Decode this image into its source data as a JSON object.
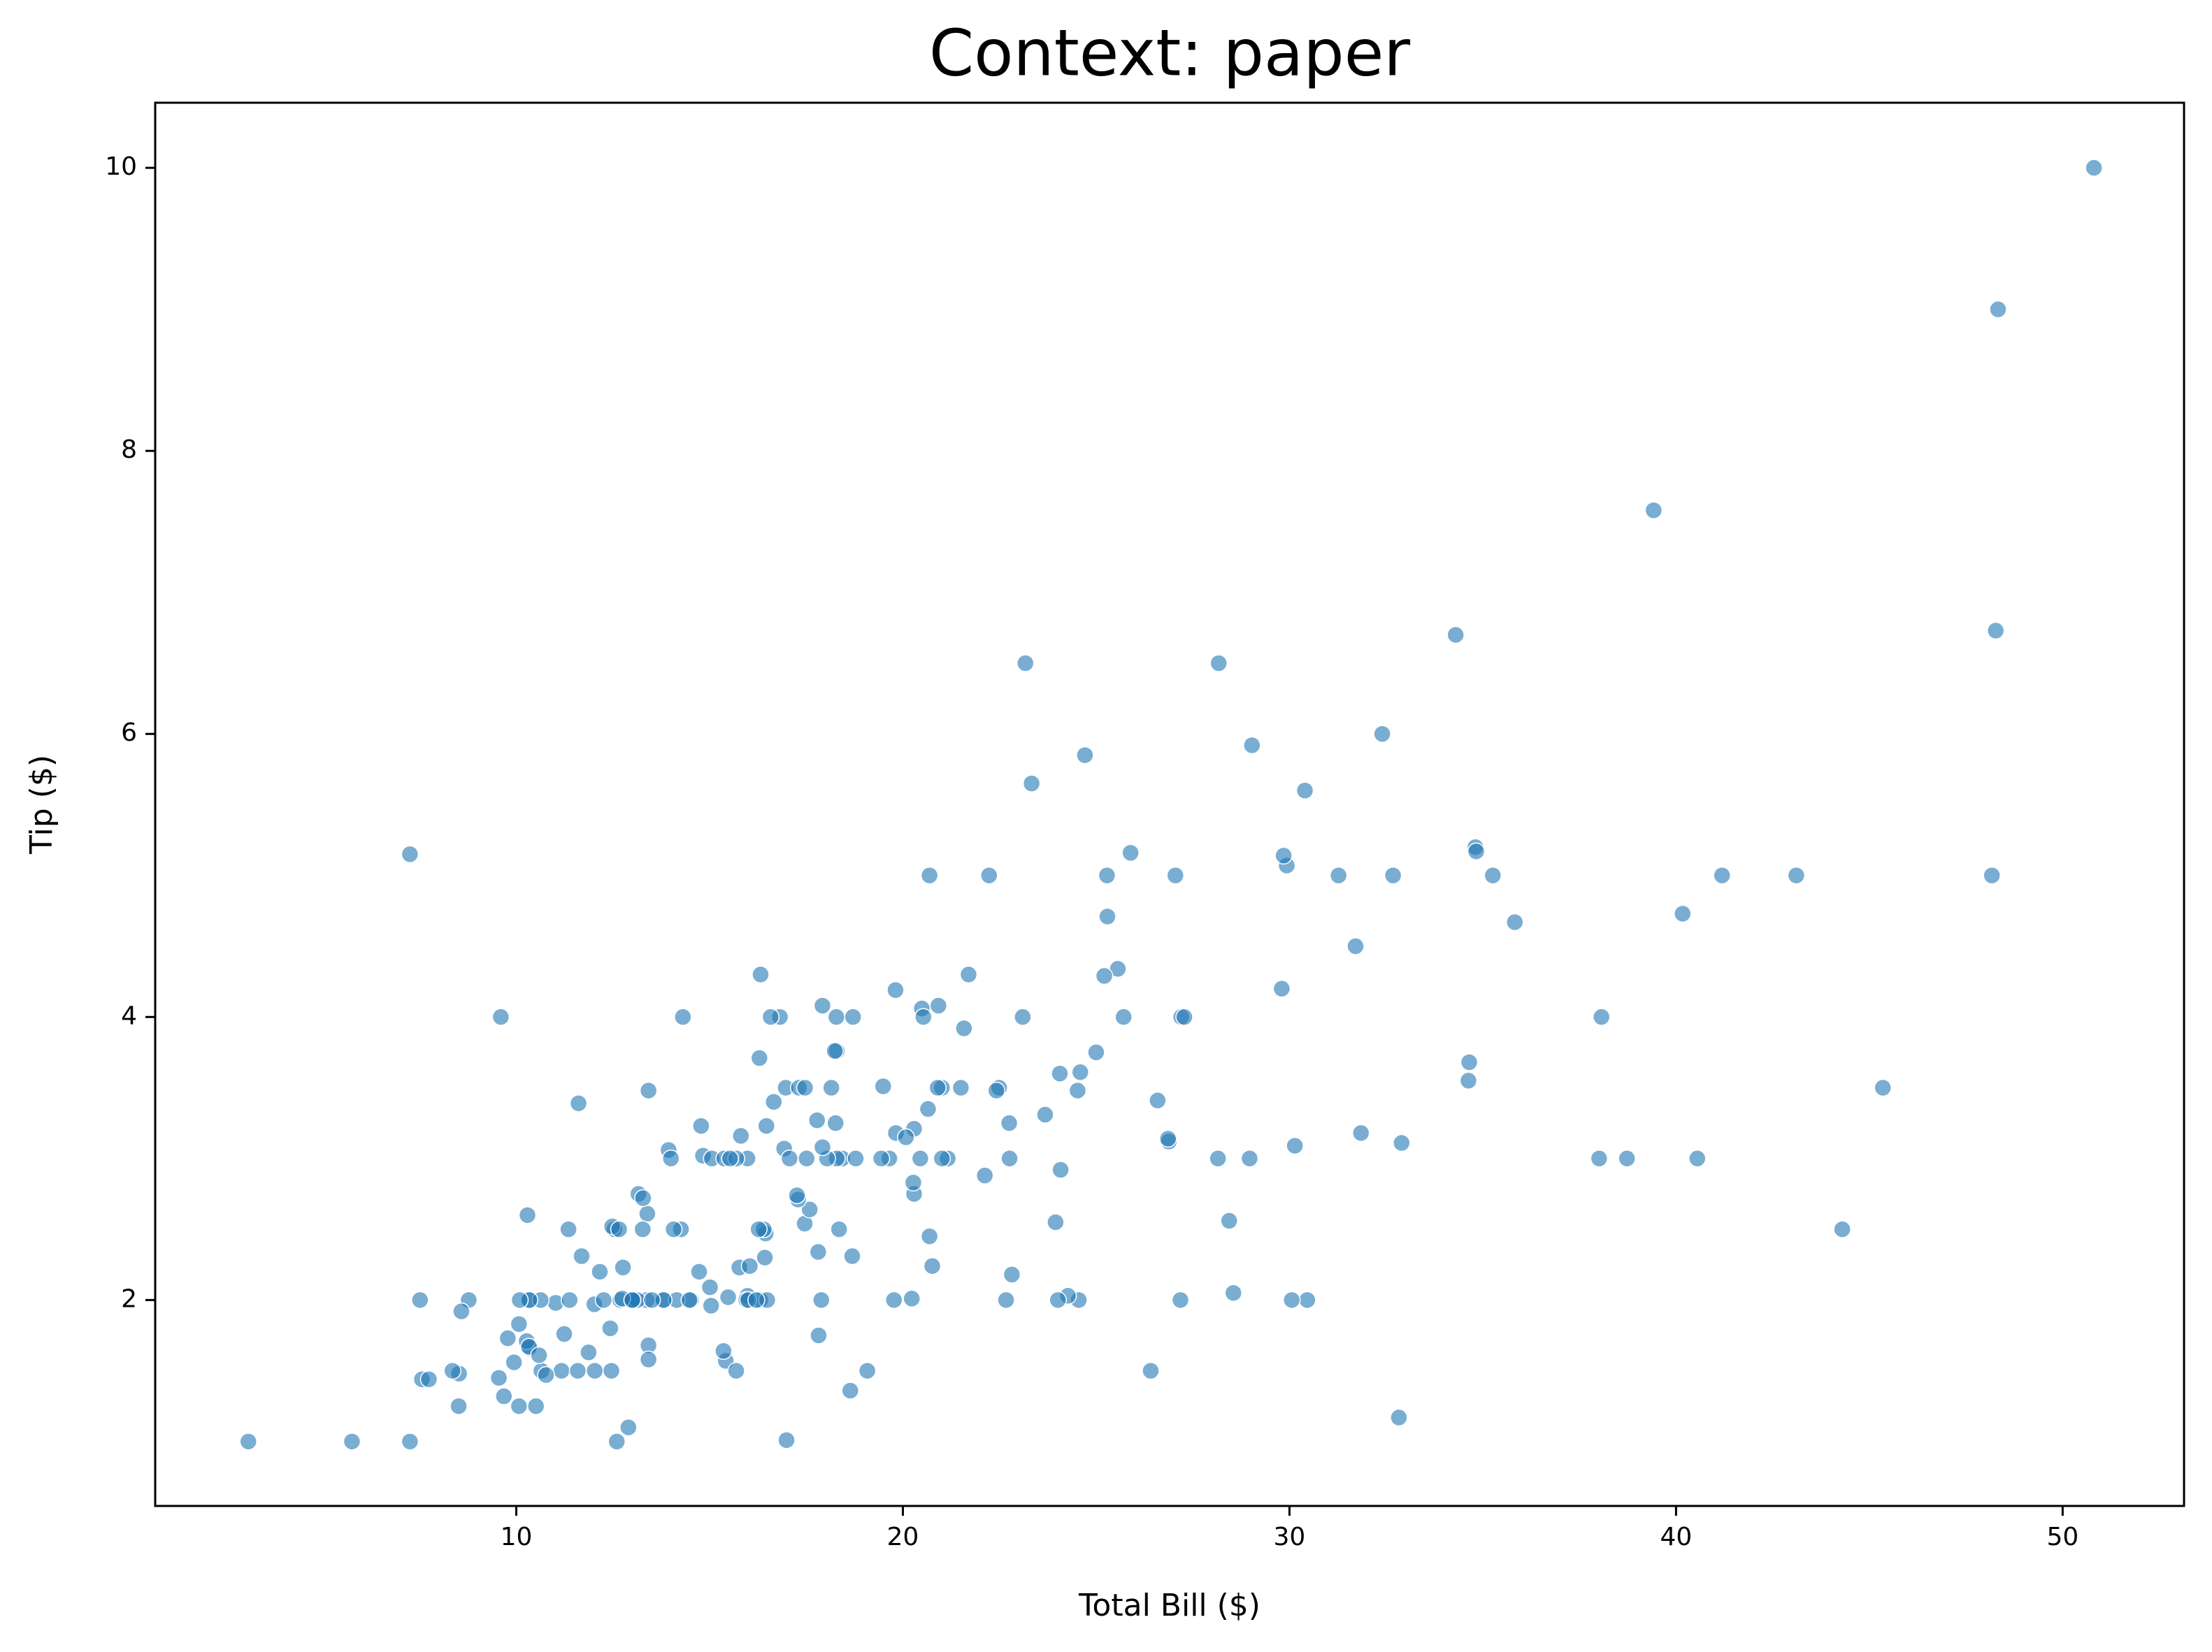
{
  "chart_data": {
    "type": "scatter",
    "title": "Context: paper",
    "x_label": "Total Bill ($)",
    "y_label": "Tip ($)",
    "color": "#1f77b4",
    "grid": false,
    "xlim": [
      0.66,
      53.14
    ],
    "ylim": [
      0.545,
      10.46
    ],
    "xticks": [
      10,
      20,
      30,
      40,
      50
    ],
    "yticks": [
      2,
      4,
      6,
      8,
      10
    ],
    "x": [
      16.99,
      10.34,
      21.01,
      23.68,
      24.59,
      25.29,
      8.77,
      26.88,
      15.04,
      14.78,
      10.27,
      35.26,
      15.42,
      18.43,
      14.83,
      21.58,
      10.33,
      16.29,
      16.97,
      20.65,
      17.92,
      20.29,
      15.77,
      39.42,
      19.82,
      17.81,
      13.37,
      12.69,
      21.7,
      19.65,
      9.55,
      18.35,
      15.06,
      20.69,
      17.78,
      24.06,
      16.31,
      16.93,
      18.69,
      31.27,
      16.04,
      17.46,
      13.94,
      9.68,
      30.4,
      18.29,
      22.23,
      32.4,
      28.55,
      18.04,
      12.54,
      10.29,
      34.81,
      9.94,
      25.56,
      19.49,
      38.01,
      26.41,
      11.24,
      48.27,
      20.29,
      13.81,
      11.02,
      18.29,
      17.59,
      20.08,
      16.45,
      3.07,
      20.23,
      15.01,
      12.02,
      17.07,
      26.86,
      25.28,
      14.73,
      10.51,
      17.92,
      27.2,
      22.76,
      17.29,
      19.44,
      16.66,
      10.07,
      32.68,
      15.98,
      34.83,
      13.03,
      18.28,
      24.71,
      21.16,
      28.97,
      22.49,
      5.75,
      16.32,
      22.75,
      40.17,
      27.28,
      12.03,
      21.01,
      12.46,
      11.35,
      15.38,
      44.3,
      22.42,
      20.92,
      15.36,
      20.49,
      25.21,
      18.24,
      14.31,
      14.0,
      7.25,
      38.07,
      23.95,
      25.71,
      17.31,
      29.93,
      10.65,
      12.43,
      24.08,
      11.69,
      13.42,
      14.26,
      15.95,
      12.48,
      29.8,
      8.52,
      14.52,
      11.38,
      22.82,
      19.08,
      20.27,
      11.17,
      12.26,
      18.26,
      8.51,
      10.33,
      14.15,
      16.0,
      13.16,
      17.47,
      34.3,
      41.19,
      27.05,
      16.43,
      8.35,
      18.64,
      11.87,
      9.78,
      7.51,
      14.07,
      13.13,
      17.26,
      24.55,
      19.77,
      29.85,
      48.17,
      25.0,
      13.39,
      16.49,
      21.5,
      12.66,
      16.21,
      13.81,
      17.51,
      24.52,
      20.76,
      31.71,
      10.59,
      10.63,
      50.81,
      15.81,
      7.25,
      31.85,
      16.82,
      32.9,
      17.89,
      14.48,
      9.6,
      34.63,
      34.65,
      23.33,
      45.35,
      23.17,
      40.55,
      20.69,
      20.9,
      30.46,
      18.15,
      23.1,
      15.69,
      19.81,
      28.44,
      15.48,
      16.58,
      7.56,
      10.34,
      43.11,
      13.0,
      13.51,
      18.71,
      12.74,
      13.0,
      16.4,
      20.53,
      16.47,
      26.59,
      38.73,
      24.27,
      12.76,
      30.06,
      25.89,
      48.33,
      13.27,
      28.17,
      12.9,
      28.15,
      11.59,
      7.74,
      30.14,
      12.16,
      13.42,
      8.58,
      15.98,
      13.42,
      16.27,
      10.09,
      20.45,
      13.28,
      22.12,
      24.01,
      15.69,
      11.61,
      10.77,
      15.53,
      10.07,
      12.6,
      32.83,
      35.83,
      29.03,
      27.18,
      22.67,
      17.82,
      18.78
    ],
    "y": [
      1.01,
      1.66,
      3.5,
      3.31,
      3.61,
      4.71,
      2.0,
      3.12,
      1.96,
      3.23,
      1.71,
      5.0,
      1.57,
      3.0,
      3.02,
      3.92,
      1.67,
      3.71,
      3.5,
      3.35,
      4.08,
      2.75,
      2.23,
      7.58,
      3.18,
      2.34,
      2.0,
      2.0,
      4.3,
      3.0,
      1.45,
      2.5,
      3.0,
      2.45,
      3.27,
      3.6,
      2.0,
      3.07,
      2.31,
      5.0,
      2.24,
      2.54,
      3.06,
      1.32,
      5.6,
      3.0,
      5.0,
      6.0,
      2.05,
      3.0,
      2.5,
      2.6,
      5.2,
      1.56,
      4.34,
      3.51,
      3.0,
      1.5,
      1.76,
      6.73,
      3.21,
      2.0,
      1.98,
      3.76,
      2.64,
      3.15,
      2.47,
      1.0,
      2.01,
      2.09,
      1.97,
      3.0,
      3.14,
      5.0,
      2.2,
      1.25,
      3.08,
      4.0,
      3.0,
      2.71,
      3.0,
      3.4,
      1.83,
      5.0,
      2.03,
      5.17,
      2.0,
      4.0,
      5.85,
      3.0,
      3.0,
      3.5,
      1.0,
      4.3,
      3.25,
      4.73,
      4.0,
      1.5,
      3.0,
      1.5,
      2.5,
      3.0,
      2.5,
      3.48,
      4.08,
      1.64,
      4.06,
      4.29,
      3.76,
      4.0,
      3.0,
      1.0,
      4.0,
      2.55,
      4.0,
      3.5,
      5.07,
      1.5,
      1.8,
      2.92,
      2.31,
      1.68,
      2.5,
      2.0,
      2.52,
      4.2,
      1.48,
      2.0,
      2.0,
      2.18,
      1.5,
      2.83,
      1.5,
      2.0,
      3.25,
      1.25,
      2.0,
      2.0,
      2.0,
      2.75,
      3.5,
      6.7,
      5.0,
      5.0,
      2.3,
      1.5,
      1.36,
      1.63,
      1.73,
      2.0,
      2.5,
      2.0,
      2.74,
      2.0,
      2.0,
      5.14,
      5.0,
      3.75,
      2.61,
      2.0,
      3.5,
      2.5,
      2.0,
      2.0,
      3.0,
      3.48,
      2.24,
      4.5,
      1.61,
      2.0,
      10.0,
      3.16,
      5.15,
      3.18,
      4.0,
      3.11,
      2.0,
      2.0,
      4.0,
      3.55,
      3.68,
      5.65,
      3.5,
      6.5,
      3.0,
      5.0,
      3.5,
      2.0,
      3.5,
      4.0,
      1.5,
      4.19,
      2.56,
      2.02,
      4.0,
      1.44,
      2.0,
      5.0,
      2.0,
      2.0,
      4.0,
      2.01,
      2.0,
      2.5,
      4.0,
      3.23,
      3.41,
      3.0,
      2.03,
      2.23,
      2.0,
      5.16,
      9.0,
      2.5,
      6.5,
      1.1,
      3.0,
      1.5,
      1.44,
      3.09,
      2.2,
      3.48,
      1.92,
      3.0,
      1.58,
      2.5,
      2.0,
      3.0,
      2.72,
      2.88,
      2.0,
      3.0,
      3.39,
      1.47,
      3.0,
      1.25,
      1.0,
      1.17,
      4.67,
      5.92,
      2.0,
      2.0,
      1.75,
      3.0
    ]
  }
}
